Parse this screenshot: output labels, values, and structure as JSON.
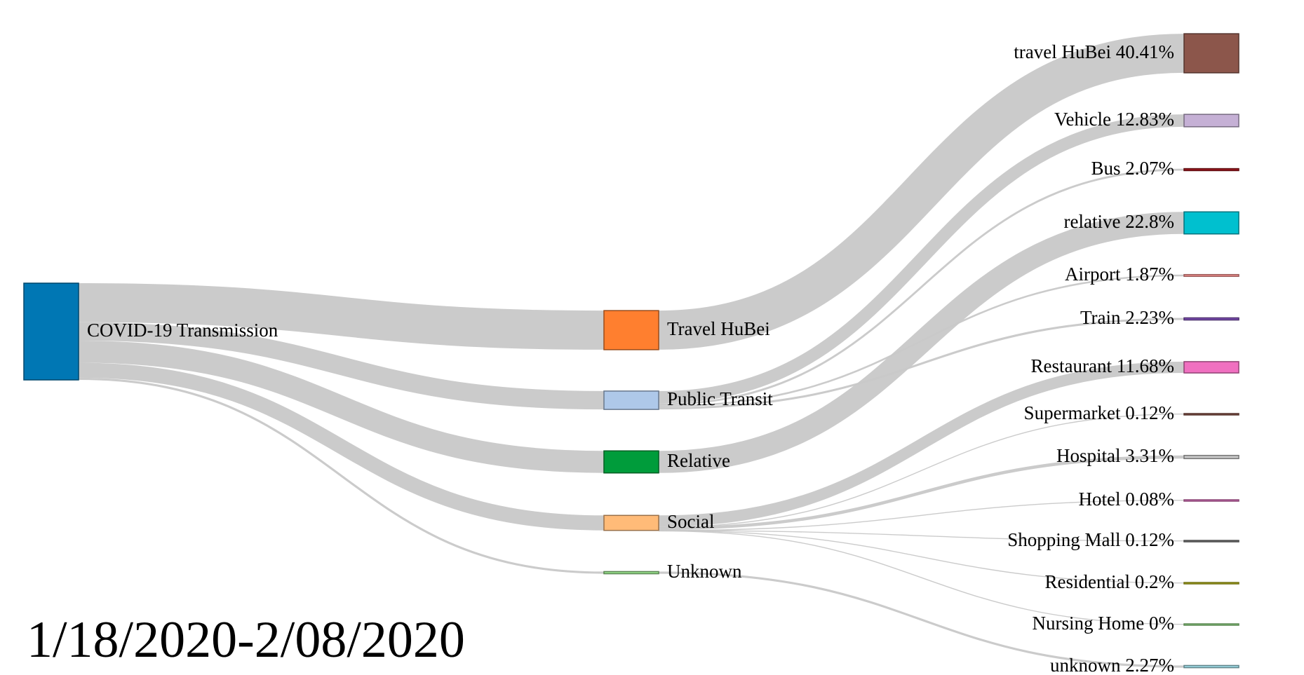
{
  "date_range": "1/18/2020-2/08/2020",
  "chart_data": {
    "type": "sankey",
    "nodes": [
      {
        "id": "covid",
        "label": "COVID-19 Transmission",
        "color": "#0077b4",
        "column": 0
      },
      {
        "id": "travel",
        "label": "Travel HuBei",
        "color": "#ff7f2f",
        "column": 1
      },
      {
        "id": "public",
        "label": "Public Transit",
        "color": "#aec8e9",
        "column": 1
      },
      {
        "id": "relative",
        "label": "Relative",
        "color": "#009c3b",
        "column": 1
      },
      {
        "id": "social",
        "label": "Social",
        "color": "#ffbb78",
        "column": 1
      },
      {
        "id": "unknown",
        "label": "Unknown",
        "color": "#98df8a",
        "column": 1
      },
      {
        "id": "t_hubei",
        "label": "travel HuBei 40.41%",
        "color": "#8c564b",
        "column": 2
      },
      {
        "id": "t_vehicle",
        "label": "Vehicle 12.83%",
        "color": "#c5b0d5",
        "column": 2
      },
      {
        "id": "t_bus",
        "label": "Bus 2.07%",
        "color": "#a0181e",
        "column": 2
      },
      {
        "id": "t_relative",
        "label": "relative 22.8%",
        "color": "#00c0cf",
        "column": 2
      },
      {
        "id": "t_airport",
        "label": "Airport 1.87%",
        "color": "#ff9896",
        "column": 2
      },
      {
        "id": "t_train",
        "label": "Train 2.23%",
        "color": "#7f4fb5",
        "column": 2
      },
      {
        "id": "t_restaurant",
        "label": "Restaurant 11.68%",
        "color": "#f070c0",
        "column": 2
      },
      {
        "id": "t_supermarket",
        "label": "Supermarket 0.12%",
        "color": "#8c564b",
        "column": 2
      },
      {
        "id": "t_hospital",
        "label": "Hospital 3.31%",
        "color": "#c7c7c7",
        "column": 2
      },
      {
        "id": "t_hotel",
        "label": "Hotel 0.08%",
        "color": "#e377c2",
        "column": 2
      },
      {
        "id": "t_mall",
        "label": "Shopping Mall 0.12%",
        "color": "#7f7f7f",
        "column": 2
      },
      {
        "id": "t_residential",
        "label": "Residential 0.2%",
        "color": "#bcbd22",
        "column": 2
      },
      {
        "id": "t_nursing",
        "label": "Nursing Home 0%",
        "color": "#98df8a",
        "column": 2
      },
      {
        "id": "t_unknown",
        "label": "unknown 2.27%",
        "color": "#9edae5",
        "column": 2
      }
    ],
    "links": [
      {
        "source": "covid",
        "target": "travel",
        "value": 40.41
      },
      {
        "source": "covid",
        "target": "public",
        "value": 19.0
      },
      {
        "source": "covid",
        "target": "relative",
        "value": 22.8
      },
      {
        "source": "covid",
        "target": "social",
        "value": 15.51
      },
      {
        "source": "covid",
        "target": "unknown",
        "value": 2.27
      },
      {
        "source": "travel",
        "target": "t_hubei",
        "value": 40.41
      },
      {
        "source": "public",
        "target": "t_vehicle",
        "value": 12.83
      },
      {
        "source": "public",
        "target": "t_bus",
        "value": 2.07
      },
      {
        "source": "public",
        "target": "t_airport",
        "value": 1.87
      },
      {
        "source": "public",
        "target": "t_train",
        "value": 2.23
      },
      {
        "source": "relative",
        "target": "t_relative",
        "value": 22.8
      },
      {
        "source": "social",
        "target": "t_restaurant",
        "value": 11.68
      },
      {
        "source": "social",
        "target": "t_supermarket",
        "value": 0.12
      },
      {
        "source": "social",
        "target": "t_hospital",
        "value": 3.31
      },
      {
        "source": "social",
        "target": "t_hotel",
        "value": 0.08
      },
      {
        "source": "social",
        "target": "t_mall",
        "value": 0.12
      },
      {
        "source": "social",
        "target": "t_residential",
        "value": 0.2
      },
      {
        "source": "social",
        "target": "t_nursing",
        "value": 0.0
      },
      {
        "source": "unknown",
        "target": "t_unknown",
        "value": 2.27
      }
    ],
    "link_color": "#c8c8c8"
  }
}
